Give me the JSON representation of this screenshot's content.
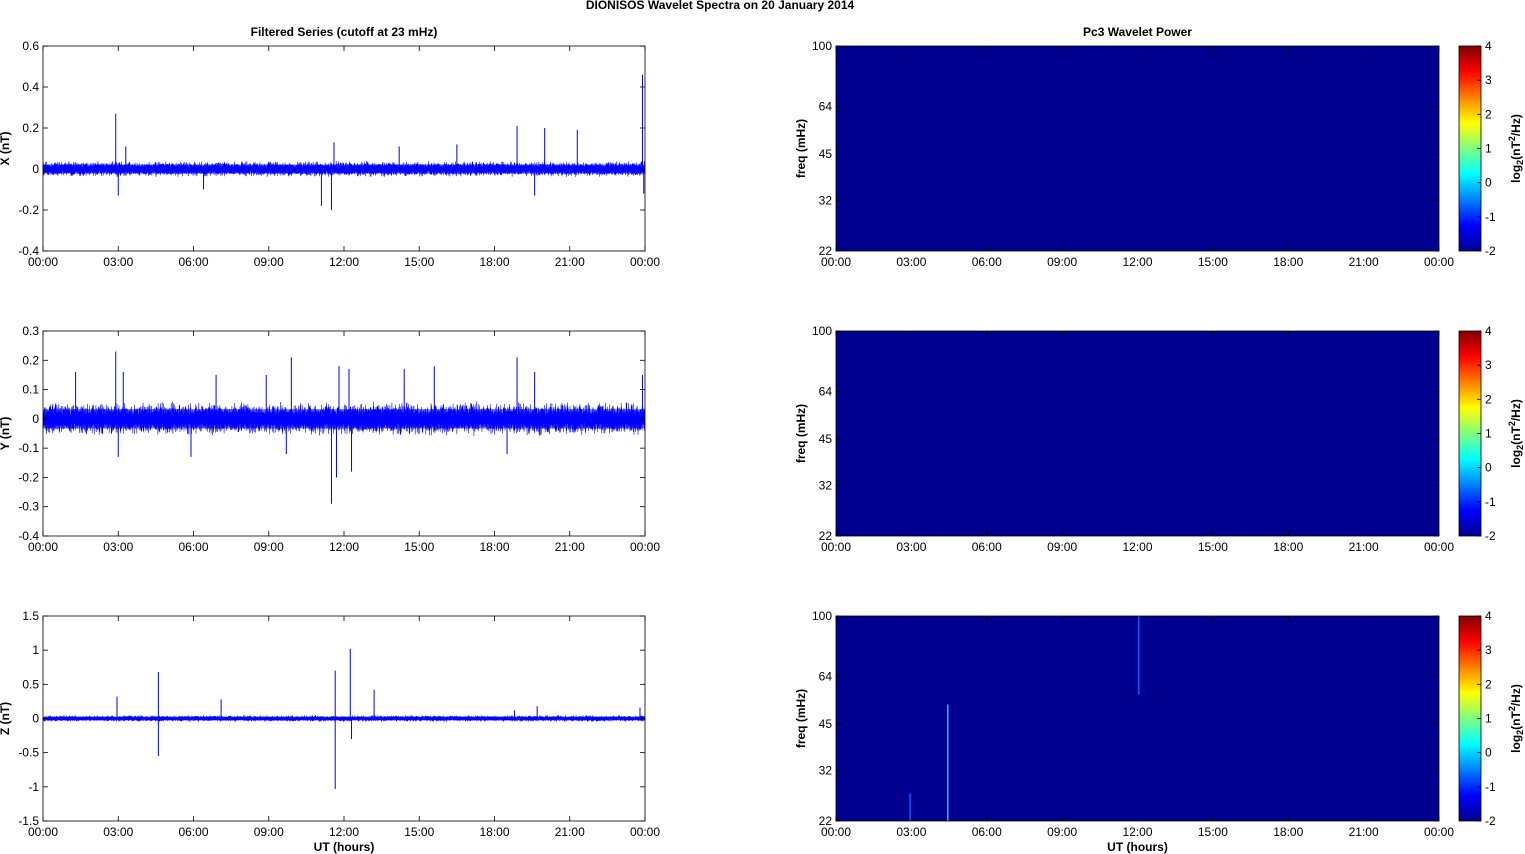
{
  "figure_title": "DIONISOS Wavelet Spectra on 20 January   2014",
  "chart_data": [
    {
      "type": "line",
      "title": "Filtered Series (cutoff at 23 mHz)",
      "ylabel": "X (nT)",
      "xlabel": "",
      "xlim": [
        0,
        24
      ],
      "ylim": [
        -0.4,
        0.6
      ],
      "yticks": [
        "0.6",
        "0.4",
        "0.2",
        "0",
        "-0.2",
        "-0.4"
      ],
      "ytick_values": [
        0.6,
        0.4,
        0.2,
        0,
        -0.2,
        -0.4
      ],
      "xticks": [
        "00:00",
        "03:00",
        "06:00",
        "09:00",
        "12:00",
        "15:00",
        "18:00",
        "21:00",
        "00:00"
      ],
      "series": [
        {
          "color": "#0000ff",
          "noise_band": [
            -0.04,
            0.04
          ],
          "spikes": [
            {
              "x": 2.9,
              "y": 0.27
            },
            {
              "x": 3.0,
              "y": -0.13
            },
            {
              "x": 3.3,
              "y": 0.11
            },
            {
              "x": 11.6,
              "y": 0.13
            },
            {
              "x": 11.5,
              "y": -0.2
            },
            {
              "x": 11.1,
              "y": -0.18
            },
            {
              "x": 18.9,
              "y": 0.21
            },
            {
              "x": 20.0,
              "y": 0.2
            },
            {
              "x": 21.3,
              "y": 0.19
            },
            {
              "x": 23.9,
              "y": 0.46
            },
            {
              "x": 23.95,
              "y": -0.12
            },
            {
              "x": 6.4,
              "y": -0.1
            },
            {
              "x": 14.2,
              "y": 0.11
            },
            {
              "x": 16.5,
              "y": 0.12
            },
            {
              "x": 19.6,
              "y": -0.13
            }
          ]
        }
      ]
    },
    {
      "type": "line",
      "title": "",
      "ylabel": "Y (nT)",
      "xlabel": "",
      "xlim": [
        0,
        24
      ],
      "ylim": [
        -0.4,
        0.3
      ],
      "yticks": [
        "0.3",
        "0.2",
        "0.1",
        "0",
        "-0.1",
        "-0.2",
        "-0.3",
        "-0.4"
      ],
      "ytick_values": [
        0.3,
        0.2,
        0.1,
        0,
        -0.1,
        -0.2,
        -0.3,
        -0.4
      ],
      "xticks": [
        "00:00",
        "03:00",
        "06:00",
        "09:00",
        "12:00",
        "15:00",
        "18:00",
        "21:00",
        "00:00"
      ],
      "series": [
        {
          "color": "#0000ff",
          "noise_band": [
            -0.06,
            0.06
          ],
          "spikes": [
            {
              "x": 2.9,
              "y": 0.23
            },
            {
              "x": 3.2,
              "y": 0.16
            },
            {
              "x": 1.3,
              "y": 0.16
            },
            {
              "x": 3.0,
              "y": -0.13
            },
            {
              "x": 5.9,
              "y": -0.13
            },
            {
              "x": 9.9,
              "y": 0.21
            },
            {
              "x": 8.9,
              "y": 0.15
            },
            {
              "x": 11.5,
              "y": -0.29
            },
            {
              "x": 11.7,
              "y": -0.2
            },
            {
              "x": 12.3,
              "y": -0.18
            },
            {
              "x": 11.8,
              "y": 0.18
            },
            {
              "x": 12.2,
              "y": 0.17
            },
            {
              "x": 15.6,
              "y": 0.18
            },
            {
              "x": 18.9,
              "y": 0.21
            },
            {
              "x": 19.6,
              "y": 0.16
            },
            {
              "x": 23.9,
              "y": 0.15
            },
            {
              "x": 14.4,
              "y": 0.17
            },
            {
              "x": 6.9,
              "y": 0.15
            },
            {
              "x": 9.7,
              "y": -0.12
            },
            {
              "x": 18.5,
              "y": -0.12
            }
          ]
        }
      ]
    },
    {
      "type": "line",
      "title": "",
      "ylabel": "Z (nT)",
      "xlabel": "UT (hours)",
      "xlim": [
        0,
        24
      ],
      "ylim": [
        -1.5,
        1.5
      ],
      "yticks": [
        "1.5",
        "1",
        "0.5",
        "0",
        "-0.5",
        "-1",
        "-1.5"
      ],
      "ytick_values": [
        1.5,
        1,
        0.5,
        0,
        -0.5,
        -1,
        -1.5
      ],
      "xticks": [
        "00:00",
        "03:00",
        "06:00",
        "09:00",
        "12:00",
        "15:00",
        "18:00",
        "21:00",
        "00:00"
      ],
      "series": [
        {
          "color": "#0000ff",
          "noise_band": [
            -0.05,
            0.05
          ],
          "spikes": [
            {
              "x": 2.95,
              "y": 0.32
            },
            {
              "x": 4.6,
              "y": 0.68
            },
            {
              "x": 4.6,
              "y": -0.55
            },
            {
              "x": 7.1,
              "y": 0.28
            },
            {
              "x": 11.65,
              "y": 0.7
            },
            {
              "x": 11.65,
              "y": -1.03
            },
            {
              "x": 12.25,
              "y": 1.02
            },
            {
              "x": 12.3,
              "y": -0.3
            },
            {
              "x": 13.2,
              "y": 0.42
            },
            {
              "x": 18.8,
              "y": 0.12
            },
            {
              "x": 19.7,
              "y": 0.18
            },
            {
              "x": 23.8,
              "y": 0.16
            }
          ]
        }
      ]
    },
    {
      "type": "heatmap",
      "title": "Pc3 Wavelet Power",
      "ylabel": "freq (mHz)",
      "xlabel": "",
      "xlim": [
        0,
        24
      ],
      "yscale": "log",
      "ylim": [
        22,
        100
      ],
      "yticks": [
        100,
        64,
        45,
        32,
        22
      ],
      "xticks": [
        "00:00",
        "03:00",
        "06:00",
        "09:00",
        "12:00",
        "15:00",
        "18:00",
        "21:00",
        "00:00"
      ],
      "background_level": -2,
      "features": [],
      "colorbar": {
        "label_base": "log",
        "label_sub": "2",
        "label_mid": "(nT",
        "label_sup": "2",
        "label_end": "/Hz)",
        "ticks": [
          "4",
          "3",
          "2",
          "1",
          "0",
          "-1",
          "-2"
        ],
        "range": [
          -2,
          4
        ]
      }
    },
    {
      "type": "heatmap",
      "title": "",
      "ylabel": "freq (mHz)",
      "xlabel": "",
      "xlim": [
        0,
        24
      ],
      "yscale": "log",
      "ylim": [
        22,
        100
      ],
      "yticks": [
        100,
        64,
        45,
        32,
        22
      ],
      "xticks": [
        "00:00",
        "03:00",
        "06:00",
        "09:00",
        "12:00",
        "15:00",
        "18:00",
        "21:00",
        "00:00"
      ],
      "background_level": -2,
      "features": [],
      "colorbar": {
        "label_base": "log",
        "label_sub": "2",
        "label_mid": "(nT",
        "label_sup": "2",
        "label_end": "/Hz)",
        "ticks": [
          "4",
          "3",
          "2",
          "1",
          "0",
          "-1",
          "-2"
        ],
        "range": [
          -2,
          4
        ]
      }
    },
    {
      "type": "heatmap",
      "title": "",
      "ylabel": "freq (mHz)",
      "xlabel": "UT (hours)",
      "xlim": [
        0,
        24
      ],
      "yscale": "log",
      "ylim": [
        22,
        100
      ],
      "yticks": [
        100,
        64,
        45,
        32,
        22
      ],
      "xticks": [
        "00:00",
        "03:00",
        "06:00",
        "09:00",
        "12:00",
        "15:00",
        "18:00",
        "21:00",
        "00:00"
      ],
      "background_level": -2,
      "features": [
        {
          "t": 4.45,
          "f_min": 22,
          "f_max": 52,
          "level": -0.3
        },
        {
          "t": 2.95,
          "f_min": 22,
          "f_max": 27,
          "level": -1.2
        },
        {
          "t": 12.05,
          "f_min": 56,
          "f_max": 100,
          "level": -1.2
        }
      ],
      "colorbar": {
        "label_base": "log",
        "label_sub": "2",
        "label_mid": "(nT",
        "label_sup": "2",
        "label_end": "/Hz)",
        "ticks": [
          "4",
          "3",
          "2",
          "1",
          "0",
          "-1",
          "-2"
        ],
        "range": [
          -2,
          4
        ]
      }
    }
  ]
}
